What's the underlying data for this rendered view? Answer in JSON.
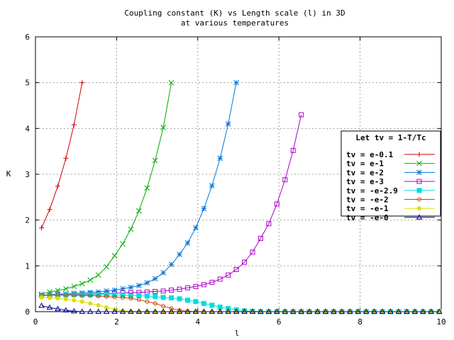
{
  "chart_data": {
    "type": "line",
    "title": "Coupling constant (K) vs Length scale (l) in 3D",
    "subtitle": "at various temperatures",
    "xlabel": "l",
    "ylabel": "K",
    "xlim": [
      0,
      10
    ],
    "ylim": [
      0,
      6
    ],
    "x_ticks": [
      "0",
      "2",
      "4",
      "6",
      "8",
      "10"
    ],
    "y_ticks": [
      "0",
      "1",
      "2",
      "3",
      "4",
      "5",
      "6"
    ],
    "grid": true,
    "legend_position": "right",
    "legend_title": "Let tv = 1-T/Tc",
    "series": [
      {
        "name": "tv = e-0.1",
        "color": "#cc0000",
        "marker": "plus",
        "x": [
          0.15,
          0.35,
          0.55,
          0.75,
          0.95,
          1.15
        ],
        "y": [
          1.83,
          2.23,
          2.74,
          3.35,
          4.08,
          5.0
        ]
      },
      {
        "name": "tv = e-1",
        "color": "#00aa00",
        "marker": "cross",
        "x": [
          0.15,
          0.35,
          0.55,
          0.75,
          0.95,
          1.15,
          1.35,
          1.55,
          1.75,
          1.95,
          2.15,
          2.35,
          2.55,
          2.75,
          2.95,
          3.15,
          3.35
        ],
        "y": [
          0.38,
          0.43,
          0.46,
          0.5,
          0.55,
          0.61,
          0.69,
          0.8,
          0.98,
          1.22,
          1.48,
          1.8,
          2.2,
          2.7,
          3.3,
          4.02,
          5.0
        ]
      },
      {
        "name": "tv = e-2",
        "color": "#0077dd",
        "marker": "star",
        "x": [
          0.15,
          0.35,
          0.55,
          0.75,
          0.95,
          1.15,
          1.35,
          1.55,
          1.75,
          1.95,
          2.15,
          2.35,
          2.55,
          2.75,
          2.95,
          3.15,
          3.35,
          3.55,
          3.75,
          3.95,
          4.15,
          4.35,
          4.55,
          4.75,
          4.95
        ],
        "y": [
          0.36,
          0.37,
          0.38,
          0.39,
          0.4,
          0.41,
          0.42,
          0.43,
          0.45,
          0.47,
          0.5,
          0.53,
          0.57,
          0.63,
          0.72,
          0.85,
          1.03,
          1.25,
          1.5,
          1.83,
          2.25,
          2.75,
          3.35,
          4.1,
          5.0
        ]
      },
      {
        "name": "tv = e-3",
        "color": "#aa00cc",
        "marker": "box",
        "x": [
          0.15,
          0.35,
          0.55,
          0.75,
          0.95,
          1.15,
          1.35,
          1.55,
          1.75,
          1.95,
          2.15,
          2.35,
          2.55,
          2.75,
          2.95,
          3.15,
          3.35,
          3.55,
          3.75,
          3.95,
          4.15,
          4.35,
          4.55,
          4.75,
          4.95,
          5.15,
          5.35,
          5.55,
          5.75,
          5.95,
          6.15,
          6.35,
          6.55
        ],
        "y": [
          0.35,
          0.36,
          0.37,
          0.37,
          0.38,
          0.38,
          0.39,
          0.39,
          0.4,
          0.4,
          0.41,
          0.41,
          0.42,
          0.43,
          0.44,
          0.45,
          0.47,
          0.49,
          0.52,
          0.55,
          0.59,
          0.64,
          0.71,
          0.8,
          0.92,
          1.08,
          1.3,
          1.6,
          1.92,
          2.35,
          2.88,
          3.52,
          4.3
        ]
      },
      {
        "name": "tv = -e-2.9",
        "color": "#00dddd",
        "marker": "filledbox",
        "x": [
          0.15,
          0.35,
          0.55,
          0.75,
          0.95,
          1.15,
          1.35,
          1.55,
          1.75,
          1.95,
          2.15,
          2.35,
          2.55,
          2.75,
          2.95,
          3.15,
          3.35,
          3.55,
          3.75,
          3.95,
          4.15,
          4.35,
          4.55,
          4.75,
          4.95,
          5.15,
          5.35,
          5.55,
          5.75,
          5.95,
          6.15,
          6.35,
          6.55,
          6.75,
          6.95,
          7.15,
          7.35,
          7.55,
          7.75,
          7.95,
          8.15,
          8.35,
          8.55,
          8.75,
          8.95,
          9.15,
          9.35,
          9.55,
          9.75,
          9.95
        ],
        "y": [
          0.35,
          0.36,
          0.36,
          0.37,
          0.37,
          0.37,
          0.37,
          0.37,
          0.37,
          0.36,
          0.36,
          0.35,
          0.35,
          0.34,
          0.33,
          0.31,
          0.3,
          0.28,
          0.25,
          0.22,
          0.18,
          0.14,
          0.1,
          0.07,
          0.04,
          0.02,
          0.01,
          0.0,
          0.0,
          0.0,
          0.0,
          0.0,
          0.0,
          0.0,
          0.0,
          0.0,
          0.0,
          0.0,
          0.0,
          0.0,
          0.0,
          0.0,
          0.0,
          0.0,
          0.0,
          0.0,
          0.0,
          0.0,
          0.0,
          0.0
        ]
      },
      {
        "name": "tv = -e-2",
        "color": "#cc4400",
        "marker": "circle",
        "x": [
          0.15,
          0.35,
          0.55,
          0.75,
          0.95,
          1.15,
          1.35,
          1.55,
          1.75,
          1.95,
          2.15,
          2.35,
          2.55,
          2.75,
          2.95,
          3.15,
          3.35,
          3.55,
          3.75,
          3.95,
          4.15,
          4.35,
          4.55,
          4.75,
          4.95,
          5.15,
          5.35,
          5.55,
          5.75,
          5.95,
          6.15,
          6.35,
          6.55,
          6.75,
          6.95,
          7.15,
          7.35,
          7.55,
          7.75,
          7.95,
          8.15,
          8.35,
          8.55,
          8.75,
          8.95,
          9.15,
          9.35,
          9.55,
          9.75,
          9.95
        ],
        "y": [
          0.36,
          0.36,
          0.36,
          0.36,
          0.36,
          0.35,
          0.35,
          0.34,
          0.33,
          0.32,
          0.31,
          0.29,
          0.26,
          0.22,
          0.18,
          0.12,
          0.07,
          0.03,
          0.01,
          0.0,
          0.0,
          0.0,
          0.0,
          0.0,
          0.0,
          0.0,
          0.0,
          0.0,
          0.0,
          0.0,
          0.0,
          0.0,
          0.0,
          0.0,
          0.0,
          0.0,
          0.0,
          0.0,
          0.0,
          0.0,
          0.0,
          0.0,
          0.0,
          0.0,
          0.0,
          0.0,
          0.0,
          0.0,
          0.0,
          0.0
        ]
      },
      {
        "name": "tv = -e-1",
        "color": "#dddd00",
        "marker": "filledcircle",
        "x": [
          0.15,
          0.35,
          0.55,
          0.75,
          0.95,
          1.15,
          1.35,
          1.55,
          1.75,
          1.95,
          2.15,
          2.35,
          2.55,
          2.75,
          2.95,
          3.15,
          3.35,
          3.55,
          3.75,
          3.95,
          4.15,
          4.35,
          4.55,
          4.75,
          4.95,
          5.15,
          5.35,
          5.55,
          5.75,
          5.95,
          6.15,
          6.35,
          6.55,
          6.75,
          6.95,
          7.15,
          7.35,
          7.55,
          7.75,
          7.95,
          8.15,
          8.35,
          8.55,
          8.75,
          8.95,
          9.15,
          9.35,
          9.55,
          9.75,
          9.95
        ],
        "y": [
          0.31,
          0.3,
          0.29,
          0.27,
          0.25,
          0.22,
          0.18,
          0.14,
          0.09,
          0.05,
          0.02,
          0.01,
          0.0,
          0.0,
          0.0,
          0.0,
          0.0,
          0.0,
          0.0,
          0.0,
          0.0,
          0.0,
          0.0,
          0.0,
          0.0,
          0.0,
          0.0,
          0.0,
          0.0,
          0.0,
          0.0,
          0.0,
          0.0,
          0.0,
          0.0,
          0.0,
          0.0,
          0.0,
          0.0,
          0.0,
          0.0,
          0.0,
          0.0,
          0.0,
          0.0,
          0.0,
          0.0,
          0.0,
          0.0,
          0.0
        ]
      },
      {
        "name": "tv = -e-0",
        "color": "#000099",
        "marker": "triangle",
        "x": [
          0.15,
          0.35,
          0.55,
          0.75,
          0.95,
          1.15,
          1.35,
          1.55,
          1.75,
          1.95,
          2.15,
          2.35,
          2.55,
          2.75,
          2.95,
          3.15,
          3.35,
          3.55,
          3.75,
          3.95,
          4.15,
          4.35,
          4.55,
          4.75,
          4.95,
          5.15,
          5.35,
          5.55,
          5.75,
          5.95,
          6.15,
          6.35,
          6.55,
          6.75,
          6.95,
          7.15,
          7.35,
          7.55,
          7.75,
          7.95,
          8.15,
          8.35,
          8.55,
          8.75,
          8.95,
          9.15,
          9.35,
          9.55,
          9.75,
          9.95
        ],
        "y": [
          0.13,
          0.09,
          0.06,
          0.03,
          0.01,
          0.0,
          0.0,
          0.0,
          0.0,
          0.0,
          0.0,
          0.0,
          0.0,
          0.0,
          0.0,
          0.0,
          0.0,
          0.0,
          0.0,
          0.0,
          0.0,
          0.0,
          0.0,
          0.0,
          0.0,
          0.0,
          0.0,
          0.0,
          0.0,
          0.0,
          0.0,
          0.0,
          0.0,
          0.0,
          0.0,
          0.0,
          0.0,
          0.0,
          0.0,
          0.0,
          0.0,
          0.0,
          0.0,
          0.0,
          0.0,
          0.0,
          0.0,
          0.0,
          0.0,
          0.0
        ]
      }
    ]
  }
}
